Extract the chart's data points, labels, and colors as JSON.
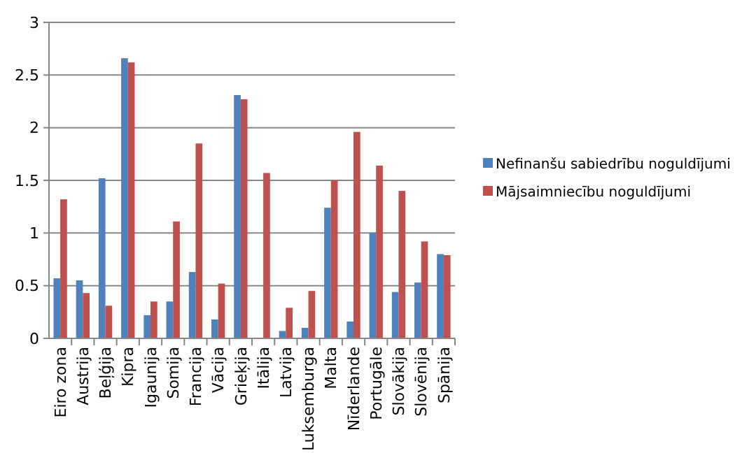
{
  "chart_data": {
    "type": "bar",
    "categories": [
      "Eiro zona",
      "Austrija",
      "Beļģija",
      "Kipra",
      "Igaunija",
      "Somija",
      "Francija",
      "Vācija",
      "Grieķija",
      "Itālija",
      "Latvija",
      "Luksemburga",
      "Malta",
      "Nīderlande",
      "Portugāle",
      "Slovākija",
      "Slovēnija",
      "Spānija"
    ],
    "series": [
      {
        "name": "Nefinanšu sabiedrību noguldījumi",
        "color": "#4f81bd",
        "values": [
          0.57,
          0.55,
          1.52,
          2.66,
          0.22,
          0.35,
          0.63,
          0.18,
          2.31,
          0,
          0.07,
          0.1,
          1.24,
          0.16,
          1.0,
          0.44,
          0.53,
          0.8
        ]
      },
      {
        "name": "Mājsaimniecību noguldījumi",
        "color": "#c0504d",
        "values": [
          1.32,
          0.43,
          0.31,
          2.62,
          0.35,
          1.11,
          1.85,
          0.52,
          2.27,
          1.57,
          0.29,
          0.45,
          1.5,
          1.96,
          1.64,
          1.4,
          0.92,
          0.79
        ]
      }
    ],
    "ylim": [
      0,
      3
    ],
    "yticks": [
      0,
      0.5,
      1,
      1.5,
      2,
      2.5,
      3
    ],
    "grid": "y",
    "legend": "right"
  }
}
